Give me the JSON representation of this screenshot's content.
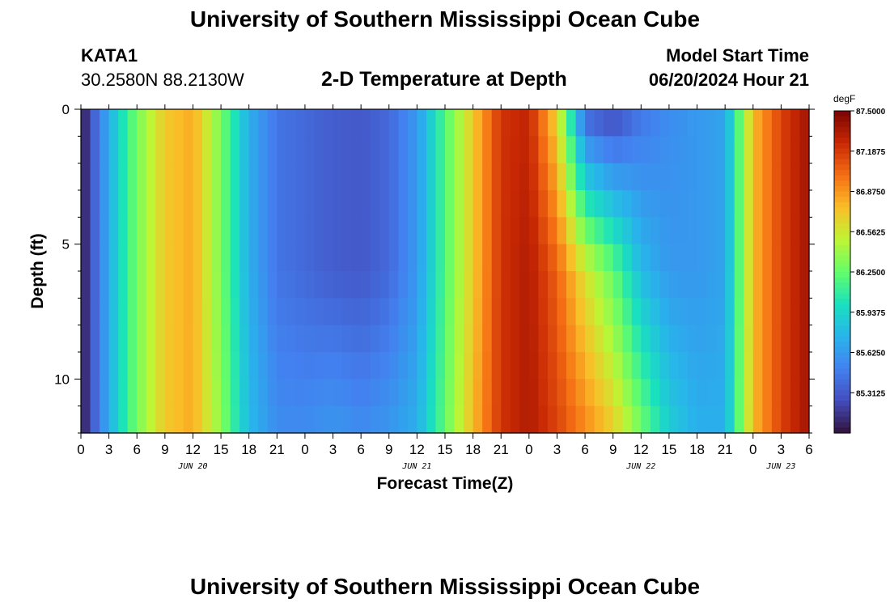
{
  "header": {
    "title": "University of Southern Mississippi Ocean Cube",
    "station": "KATA1",
    "coords": "30.2580N  88.2130W",
    "subtitle": "2-D Temperature at Depth",
    "model_label": "Model Start Time",
    "model_time": "06/20/2024 Hour 21"
  },
  "footer": {
    "title": "University of Southern Mississippi Ocean Cube"
  },
  "colorbar": {
    "unit": "degF",
    "labels": [
      "87.5000",
      "87.1875",
      "86.8750",
      "86.5625",
      "86.2500",
      "85.9375",
      "85.6250",
      "85.3125"
    ],
    "min": 85.3125,
    "max": 87.5
  },
  "chart_data": {
    "type": "heatmap",
    "title": "2-D Temperature at Depth",
    "xlabel": "Forecast Time(Z)",
    "ylabel": "Depth (ft)",
    "x_tick_labels": [
      "0",
      "3",
      "6",
      "9",
      "12",
      "15",
      "18",
      "21",
      "0",
      "3",
      "6",
      "9",
      "12",
      "15",
      "18",
      "21",
      "0",
      "3",
      "6",
      "9",
      "12",
      "15",
      "18",
      "21",
      "0",
      "3",
      "6"
    ],
    "x_date_labels": [
      {
        "label": "JUN 20",
        "hour": 12
      },
      {
        "label": "JUN 21",
        "hour": 36
      },
      {
        "label": "JUN 22",
        "hour": 60
      },
      {
        "label": "JUN 23",
        "hour": 75
      }
    ],
    "xlim": [
      0,
      78
    ],
    "y_tick_labels": [
      "0",
      "5",
      "10"
    ],
    "ylim": [
      0,
      12
    ],
    "value_unit": "degF",
    "vlim": [
      85.3125,
      87.5
    ],
    "x_hours": [
      0,
      3,
      6,
      9,
      12,
      15,
      18,
      21,
      24,
      27,
      30,
      33,
      36,
      39,
      42,
      45,
      48,
      51,
      54,
      57,
      60,
      63,
      66,
      69,
      72,
      75,
      78
    ],
    "depth_ft": [
      0,
      6,
      12
    ],
    "temperature_degF": [
      [
        85.32,
        85.95,
        86.45,
        86.8,
        86.9,
        86.45,
        85.95,
        85.7,
        85.65,
        85.6,
        85.58,
        85.65,
        85.85,
        86.35,
        86.8,
        87.25,
        87.3,
        86.75,
        85.6,
        85.5,
        85.7,
        85.8,
        85.85,
        85.9,
        86.85,
        87.2,
        87.4
      ],
      [
        85.32,
        85.95,
        86.45,
        86.8,
        86.9,
        86.45,
        85.95,
        85.7,
        85.65,
        85.6,
        85.58,
        85.65,
        85.85,
        86.35,
        86.8,
        87.25,
        87.35,
        87.1,
        86.7,
        86.4,
        86.0,
        85.85,
        85.85,
        85.9,
        86.85,
        87.2,
        87.4
      ],
      [
        85.32,
        85.95,
        86.45,
        86.8,
        86.9,
        86.5,
        86.0,
        85.8,
        85.8,
        85.85,
        85.8,
        85.85,
        85.95,
        86.4,
        86.85,
        87.25,
        87.35,
        87.2,
        87.0,
        86.8,
        86.45,
        86.1,
        85.95,
        85.95,
        86.85,
        87.2,
        87.4
      ]
    ]
  }
}
